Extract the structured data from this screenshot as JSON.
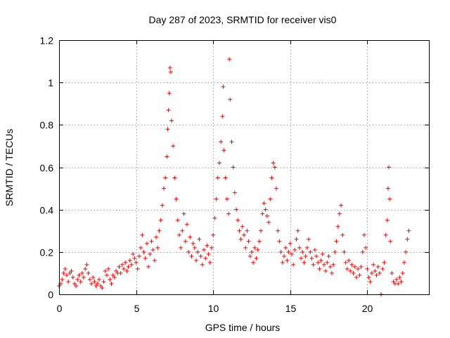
{
  "chart_data": {
    "type": "scatter",
    "title": "Day 287 of 2023, SRMTID for receiver vis0",
    "xlabel": "GPS time / hours",
    "ylabel": "SRMTID / TECUs",
    "xlim": [
      0,
      24
    ],
    "ylim": [
      0,
      1.2
    ],
    "grid": true,
    "marker": "+",
    "marker_color": "#ff0000",
    "xticks": [
      0,
      5,
      10,
      15,
      20
    ],
    "xtick_labels": [
      "0",
      "5",
      "10",
      "15",
      "20"
    ],
    "yticks": [
      0,
      0.2,
      0.4,
      0.6,
      0.8,
      1,
      1.2
    ],
    "ytick_labels": [
      "0",
      "0.2",
      "0.4",
      "0.6",
      "0.8",
      "1",
      "1.2"
    ],
    "series": [
      {
        "name": "vis0",
        "points": [
          [
            0.0,
            0.04
          ],
          [
            0.1,
            0.05
          ],
          [
            0.2,
            0.07
          ],
          [
            0.3,
            0.1
          ],
          [
            0.4,
            0.12
          ],
          [
            0.5,
            0.09
          ],
          [
            0.6,
            0.06
          ],
          [
            0.7,
            0.1
          ],
          [
            0.8,
            0.11
          ],
          [
            0.9,
            0.08
          ],
          [
            1.0,
            0.05
          ],
          [
            1.1,
            0.04
          ],
          [
            1.2,
            0.07
          ],
          [
            1.3,
            0.09
          ],
          [
            1.4,
            0.06
          ],
          [
            1.5,
            0.1
          ],
          [
            1.6,
            0.08
          ],
          [
            1.7,
            0.12
          ],
          [
            1.8,
            0.14
          ],
          [
            1.9,
            0.1
          ],
          [
            2.0,
            0.07
          ],
          [
            2.1,
            0.05
          ],
          [
            2.2,
            0.08
          ],
          [
            2.3,
            0.06
          ],
          [
            2.4,
            0.04
          ],
          [
            2.5,
            0.05
          ],
          [
            2.6,
            0.07
          ],
          [
            2.7,
            0.04
          ],
          [
            2.8,
            0.03
          ],
          [
            2.9,
            0.06
          ],
          [
            3.0,
            0.11
          ],
          [
            3.1,
            0.09
          ],
          [
            3.2,
            0.12
          ],
          [
            3.3,
            0.07
          ],
          [
            3.4,
            0.05
          ],
          [
            3.5,
            0.09
          ],
          [
            3.6,
            0.08
          ],
          [
            3.7,
            0.11
          ],
          [
            3.8,
            0.1
          ],
          [
            3.9,
            0.13
          ],
          [
            4.0,
            0.1
          ],
          [
            4.1,
            0.14
          ],
          [
            4.2,
            0.12
          ],
          [
            4.3,
            0.15
          ],
          [
            4.4,
            0.11
          ],
          [
            4.5,
            0.13
          ],
          [
            4.6,
            0.16
          ],
          [
            4.7,
            0.14
          ],
          [
            4.8,
            0.19
          ],
          [
            4.9,
            0.17
          ],
          [
            5.0,
            0.15
          ],
          [
            5.1,
            0.12
          ],
          [
            5.2,
            0.18
          ],
          [
            5.3,
            0.22
          ],
          [
            5.4,
            0.28
          ],
          [
            5.5,
            0.2
          ],
          [
            5.6,
            0.17
          ],
          [
            5.7,
            0.24
          ],
          [
            5.8,
            0.13
          ],
          [
            5.9,
            0.19
          ],
          [
            6.0,
            0.25
          ],
          [
            6.1,
            0.21
          ],
          [
            6.2,
            0.16
          ],
          [
            6.3,
            0.27
          ],
          [
            6.4,
            0.22
          ],
          [
            6.5,
            0.3
          ],
          [
            6.6,
            0.35
          ],
          [
            6.7,
            0.42
          ],
          [
            6.8,
            0.5
          ],
          [
            6.9,
            0.55
          ],
          [
            7.0,
            0.65
          ],
          [
            7.05,
            0.78
          ],
          [
            7.1,
            0.87
          ],
          [
            7.15,
            0.95
          ],
          [
            7.2,
            1.07
          ],
          [
            7.25,
            1.05
          ],
          [
            7.3,
            0.82
          ],
          [
            7.4,
            0.7
          ],
          [
            7.5,
            0.55
          ],
          [
            7.6,
            0.45
          ],
          [
            7.7,
            0.35
          ],
          [
            7.8,
            0.28
          ],
          [
            7.9,
            0.22
          ],
          [
            8.0,
            0.3
          ],
          [
            8.1,
            0.38
          ],
          [
            8.2,
            0.25
          ],
          [
            8.3,
            0.33
          ],
          [
            8.4,
            0.2
          ],
          [
            8.5,
            0.27
          ],
          [
            8.6,
            0.18
          ],
          [
            8.7,
            0.24
          ],
          [
            8.8,
            0.22
          ],
          [
            8.9,
            0.16
          ],
          [
            9.0,
            0.2
          ],
          [
            9.1,
            0.26
          ],
          [
            9.2,
            0.18
          ],
          [
            9.3,
            0.14
          ],
          [
            9.4,
            0.21
          ],
          [
            9.5,
            0.17
          ],
          [
            9.6,
            0.23
          ],
          [
            9.7,
            0.19
          ],
          [
            9.8,
            0.15
          ],
          [
            9.9,
            0.22
          ],
          [
            10.0,
            0.28
          ],
          [
            10.1,
            0.36
          ],
          [
            10.2,
            0.45
          ],
          [
            10.3,
            0.55
          ],
          [
            10.4,
            0.62
          ],
          [
            10.5,
            0.72
          ],
          [
            10.6,
            0.84
          ],
          [
            10.65,
            0.98
          ],
          [
            10.7,
            0.68
          ],
          [
            10.8,
            0.55
          ],
          [
            10.9,
            0.45
          ],
          [
            11.0,
            0.38
          ],
          [
            11.05,
            1.11
          ],
          [
            11.1,
            0.92
          ],
          [
            11.2,
            0.72
          ],
          [
            11.3,
            0.6
          ],
          [
            11.4,
            0.48
          ],
          [
            11.5,
            0.4
          ],
          [
            11.6,
            0.35
          ],
          [
            11.7,
            0.3
          ],
          [
            11.8,
            0.26
          ],
          [
            11.9,
            0.32
          ],
          [
            12.0,
            0.28
          ],
          [
            12.1,
            0.22
          ],
          [
            12.2,
            0.3
          ],
          [
            12.3,
            0.25
          ],
          [
            12.4,
            0.18
          ],
          [
            12.5,
            0.2
          ],
          [
            12.6,
            0.15
          ],
          [
            12.7,
            0.22
          ],
          [
            12.8,
            0.17
          ],
          [
            12.9,
            0.21
          ],
          [
            13.0,
            0.25
          ],
          [
            13.1,
            0.3
          ],
          [
            13.2,
            0.38
          ],
          [
            13.3,
            0.43
          ],
          [
            13.4,
            0.4
          ],
          [
            13.5,
            0.37
          ],
          [
            13.6,
            0.34
          ],
          [
            13.7,
            0.45
          ],
          [
            13.8,
            0.55
          ],
          [
            13.9,
            0.62
          ],
          [
            14.0,
            0.6
          ],
          [
            14.1,
            0.5
          ],
          [
            14.2,
            0.3
          ],
          [
            14.3,
            0.25
          ],
          [
            14.4,
            0.2
          ],
          [
            14.5,
            0.15
          ],
          [
            14.6,
            0.18
          ],
          [
            14.7,
            0.22
          ],
          [
            14.8,
            0.16
          ],
          [
            14.9,
            0.2
          ],
          [
            15.0,
            0.24
          ],
          [
            15.1,
            0.19
          ],
          [
            15.2,
            0.14
          ],
          [
            15.3,
            0.21
          ],
          [
            15.4,
            0.26
          ],
          [
            15.5,
            0.3
          ],
          [
            15.6,
            0.22
          ],
          [
            15.7,
            0.17
          ],
          [
            15.8,
            0.2
          ],
          [
            15.9,
            0.15
          ],
          [
            16.0,
            0.18
          ],
          [
            16.1,
            0.22
          ],
          [
            16.2,
            0.26
          ],
          [
            16.3,
            0.2
          ],
          [
            16.4,
            0.17
          ],
          [
            16.5,
            0.14
          ],
          [
            16.6,
            0.21
          ],
          [
            16.7,
            0.18
          ],
          [
            16.8,
            0.15
          ],
          [
            16.9,
            0.12
          ],
          [
            17.0,
            0.16
          ],
          [
            17.1,
            0.19
          ],
          [
            17.2,
            0.14
          ],
          [
            17.3,
            0.11
          ],
          [
            17.4,
            0.15
          ],
          [
            17.5,
            0.18
          ],
          [
            17.6,
            0.13
          ],
          [
            17.7,
            0.1
          ],
          [
            17.8,
            0.14
          ],
          [
            17.9,
            0.2
          ],
          [
            18.0,
            0.25
          ],
          [
            18.1,
            0.32
          ],
          [
            18.2,
            0.38
          ],
          [
            18.3,
            0.42
          ],
          [
            18.4,
            0.28
          ],
          [
            18.5,
            0.2
          ],
          [
            18.6,
            0.15
          ],
          [
            18.7,
            0.12
          ],
          [
            18.8,
            0.16
          ],
          [
            18.9,
            0.11
          ],
          [
            19.0,
            0.14
          ],
          [
            19.1,
            0.1
          ],
          [
            19.2,
            0.13
          ],
          [
            19.3,
            0.08
          ],
          [
            19.4,
            0.12
          ],
          [
            19.5,
            0.09
          ],
          [
            19.6,
            0.13
          ],
          [
            19.7,
            0.2
          ],
          [
            19.8,
            0.28
          ],
          [
            19.9,
            0.22
          ],
          [
            20.0,
            0.12
          ],
          [
            20.1,
            0.08
          ],
          [
            20.2,
            0.06
          ],
          [
            20.3,
            0.1
          ],
          [
            20.4,
            0.14
          ],
          [
            20.5,
            0.11
          ],
          [
            20.6,
            0.09
          ],
          [
            20.7,
            0.13
          ],
          [
            20.8,
            0.1
          ],
          [
            20.9,
            0.0
          ],
          [
            21.0,
            0.12
          ],
          [
            21.1,
            0.15
          ],
          [
            21.2,
            0.28
          ],
          [
            21.3,
            0.35
          ],
          [
            21.35,
            0.5
          ],
          [
            21.4,
            0.6
          ],
          [
            21.45,
            0.45
          ],
          [
            21.5,
            0.25
          ],
          [
            21.6,
            0.1
          ],
          [
            21.7,
            0.06
          ],
          [
            21.8,
            0.05
          ],
          [
            21.9,
            0.07
          ],
          [
            22.0,
            0.05
          ],
          [
            22.1,
            0.08
          ],
          [
            22.2,
            0.06
          ],
          [
            22.3,
            0.1
          ],
          [
            22.4,
            0.15
          ],
          [
            22.5,
            0.2
          ],
          [
            22.6,
            0.26
          ],
          [
            22.7,
            0.3
          ]
        ]
      }
    ]
  }
}
